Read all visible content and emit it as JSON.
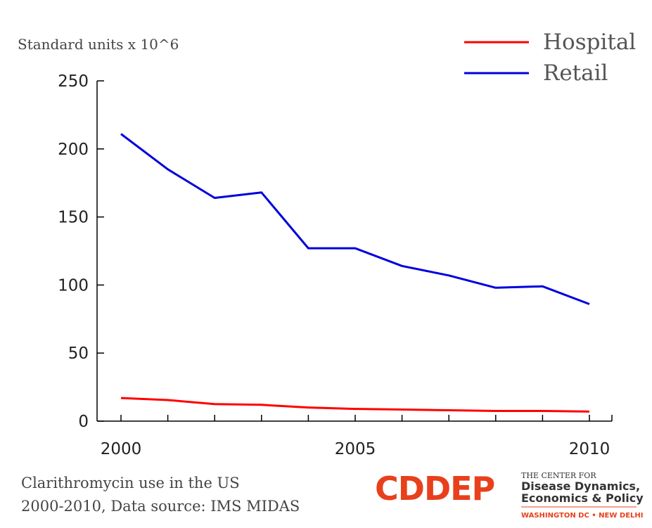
{
  "chart_data": {
    "type": "line",
    "ylabel": "Standard units x 10^6",
    "ylim": [
      0,
      250
    ],
    "xlim": [
      2000,
      2010
    ],
    "yticks": [
      "0",
      "50",
      "100",
      "150",
      "200",
      "250"
    ],
    "xtick_labels": [
      "2000",
      "2005",
      "2010"
    ],
    "legend_position": "top-right",
    "x": [
      2000,
      2001,
      2002,
      2003,
      2004,
      2005,
      2006,
      2007,
      2008,
      2009,
      2010
    ],
    "series": [
      {
        "name": "Hospital",
        "color": "#ff0000",
        "values": [
          17,
          15.5,
          12.5,
          12,
          10,
          9,
          8.5,
          8,
          7.5,
          7.5,
          7
        ]
      },
      {
        "name": "Retail",
        "color": "#0000dd",
        "values": [
          211,
          185,
          164,
          168,
          127,
          127,
          114,
          107,
          98,
          99,
          86
        ]
      }
    ]
  },
  "caption": {
    "line1": "Clarithromycin use in the US",
    "line2": "2000-2010, Data source: IMS MIDAS"
  },
  "logo": {
    "wordmark": "CDDEP",
    "line1": "THE CENTER FOR",
    "line2": "Disease Dynamics,",
    "line3": "Economics & Policy",
    "line4": "WASHINGTON DC • NEW DELHI"
  }
}
